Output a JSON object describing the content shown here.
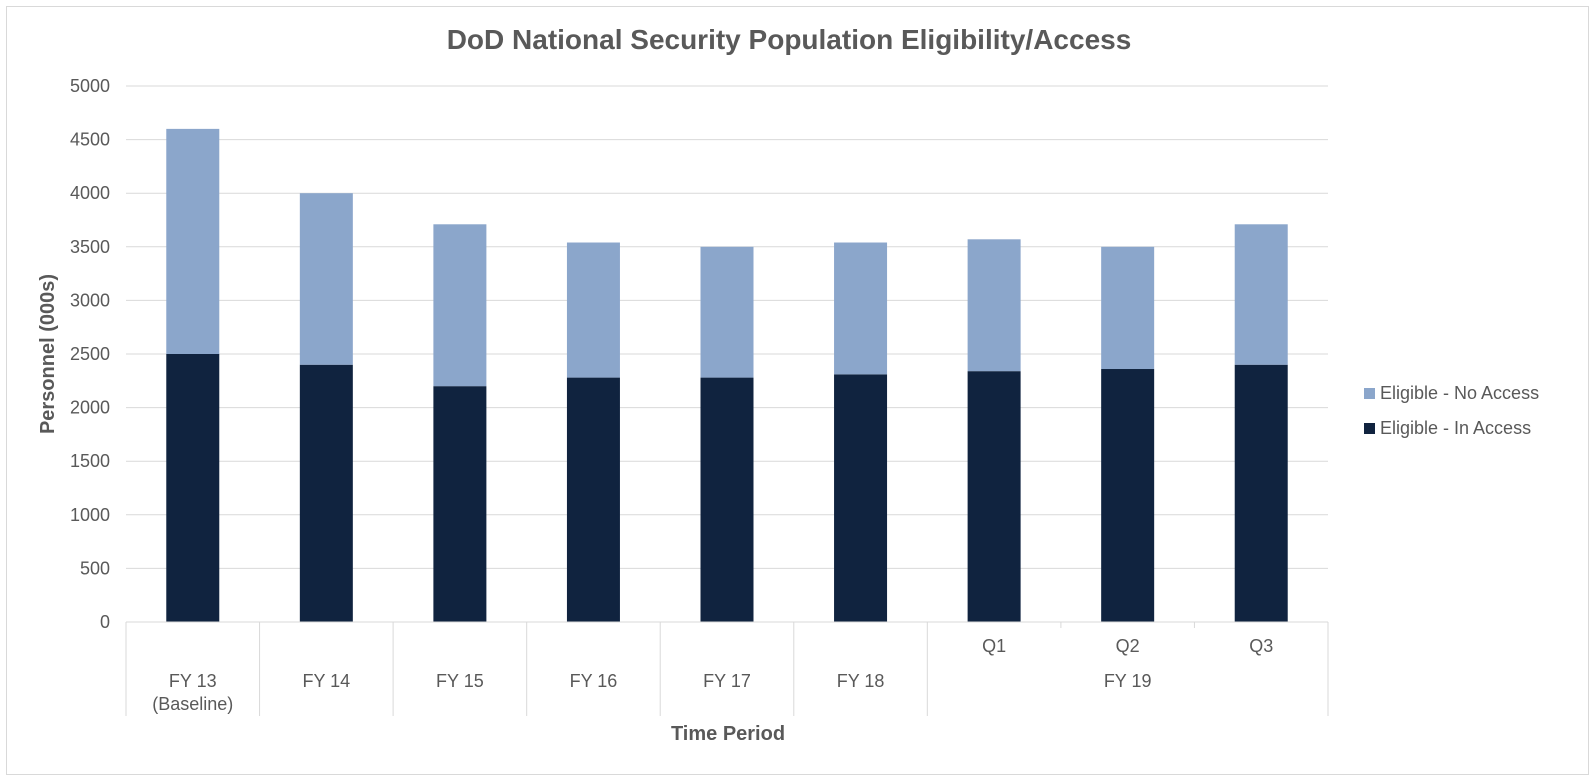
{
  "chart_data": {
    "type": "bar",
    "stacked": true,
    "title": "DoD National Security Population Eligibility/Access",
    "xlabel": "Time Period",
    "ylabel": "Personnel (000s)",
    "ylim": [
      0,
      5000
    ],
    "yticks": [
      0,
      500,
      1000,
      1500,
      2000,
      2500,
      3000,
      3500,
      4000,
      4500,
      5000
    ],
    "grid": true,
    "legend_position": "right",
    "categories": [
      {
        "label": "FY 13",
        "sublabel": "(Baseline)",
        "group": ""
      },
      {
        "label": "FY 14",
        "group": ""
      },
      {
        "label": "FY 15",
        "group": ""
      },
      {
        "label": "FY 16",
        "group": ""
      },
      {
        "label": "FY 17",
        "group": ""
      },
      {
        "label": "FY 18",
        "group": ""
      },
      {
        "label": "Q1",
        "group": "FY 19"
      },
      {
        "label": "Q2",
        "group": "FY 19"
      },
      {
        "label": "Q3",
        "group": "FY 19"
      }
    ],
    "groups": [
      {
        "label": "FY 19",
        "categories": [
          "Q1",
          "Q2",
          "Q3"
        ]
      }
    ],
    "series": [
      {
        "name": "Eligible - In Access",
        "color": "#10233f",
        "values": [
          2500,
          2400,
          2200,
          2280,
          2280,
          2310,
          2340,
          2360,
          2400
        ]
      },
      {
        "name": "Eligible - No Access",
        "color": "#8ba6cb",
        "values": [
          2100,
          1600,
          1510,
          1260,
          1220,
          1230,
          1230,
          1140,
          1310
        ]
      }
    ],
    "legend_order": [
      "Eligible - No Access",
      "Eligible - In Access"
    ]
  }
}
